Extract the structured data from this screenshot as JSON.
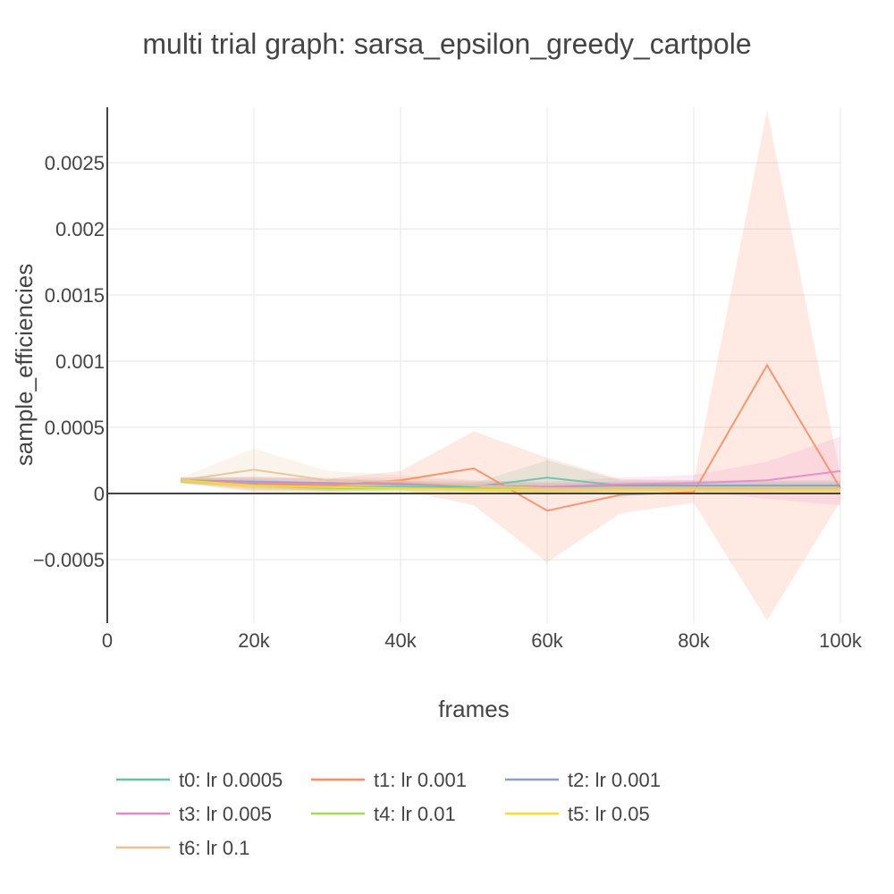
{
  "chart_data": {
    "type": "line",
    "title": "multi trial graph: sarsa_epsilon_greedy_cartpole",
    "xlabel": "frames",
    "ylabel": "sample_efficiencies",
    "xlim": [
      0,
      100000
    ],
    "ylim": [
      -0.00098,
      0.00292
    ],
    "x_ticks": [
      0,
      20000,
      40000,
      60000,
      80000,
      100000
    ],
    "x_tick_labels": [
      "0",
      "20k",
      "40k",
      "60k",
      "80k",
      "100k"
    ],
    "y_ticks": [
      -0.0005,
      0,
      0.0005,
      0.001,
      0.0015,
      0.002,
      0.0025
    ],
    "y_tick_labels": [
      "−0.0005",
      "0",
      "0.0005",
      "0.001",
      "0.0015",
      "0.002",
      "0.0025"
    ],
    "grid": true,
    "legend_position": "bottom",
    "x": [
      10000,
      20000,
      30000,
      40000,
      50000,
      60000,
      70000,
      80000,
      90000,
      100000
    ],
    "series": [
      {
        "name": "t0: lr 0.0005",
        "color": "#66c2a5",
        "values": [
          0.0001,
          8e-05,
          5e-05,
          5e-05,
          5e-05,
          0.00012,
          6e-05,
          6e-05,
          6e-05,
          6e-05
        ],
        "upper": [
          0.00012,
          0.00011,
          8e-05,
          8e-05,
          8e-05,
          0.00025,
          0.0001,
          0.0001,
          0.0001,
          0.0001
        ],
        "lower": [
          8e-05,
          5e-05,
          2e-05,
          2e-05,
          2e-05,
          -1e-05,
          2e-05,
          2e-05,
          2e-05,
          2e-05
        ]
      },
      {
        "name": "t1: lr 0.001",
        "color": "#fc8d62",
        "values": [
          0.0001,
          7e-05,
          6e-05,
          0.0001,
          0.00019,
          -0.00013,
          -1e-05,
          1e-05,
          0.00097,
          4e-05
        ],
        "upper": [
          0.00012,
          0.00013,
          0.00011,
          0.00017,
          0.00047,
          0.00027,
          0.00011,
          0.0001,
          0.0029,
          0.00014
        ],
        "lower": [
          8e-05,
          1e-05,
          1e-05,
          3e-05,
          -9e-05,
          -0.00052,
          -0.00015,
          -7e-05,
          -0.00096,
          -6e-05
        ]
      },
      {
        "name": "t2: lr 0.001",
        "color": "#8da0cb",
        "values": [
          0.0001,
          9e-05,
          8e-05,
          7e-05,
          6e-05,
          5e-05,
          6e-05,
          6e-05,
          6e-05,
          6e-05
        ],
        "upper": [
          0.00012,
          0.00012,
          0.00011,
          0.0001,
          9e-05,
          8e-05,
          9e-05,
          9e-05,
          9e-05,
          9e-05
        ],
        "lower": [
          8e-05,
          6e-05,
          5e-05,
          4e-05,
          3e-05,
          2e-05,
          3e-05,
          3e-05,
          3e-05,
          3e-05
        ]
      },
      {
        "name": "t3: lr 0.005",
        "color": "#e78ac3",
        "values": [
          0.0001,
          8e-05,
          7e-05,
          8e-05,
          6e-05,
          5e-05,
          7e-05,
          8e-05,
          0.0001,
          0.00017
        ],
        "upper": [
          0.00012,
          0.00012,
          0.00012,
          0.00012,
          0.0001,
          9e-05,
          0.00012,
          0.00014,
          0.00024,
          0.00043
        ],
        "lower": [
          8e-05,
          4e-05,
          2e-05,
          4e-05,
          2e-05,
          1e-05,
          2e-05,
          2e-05,
          -4e-05,
          -9e-05
        ]
      },
      {
        "name": "t4: lr 0.01",
        "color": "#a6d854",
        "values": [
          0.0001,
          6e-05,
          4e-05,
          4e-05,
          4e-05,
          4e-05,
          4e-05,
          4e-05,
          4e-05,
          4e-05
        ],
        "upper": [
          0.00012,
          9e-05,
          7e-05,
          7e-05,
          7e-05,
          7e-05,
          7e-05,
          7e-05,
          7e-05,
          7e-05
        ],
        "lower": [
          8e-05,
          3e-05,
          1e-05,
          1e-05,
          1e-05,
          1e-05,
          1e-05,
          1e-05,
          1e-05,
          1e-05
        ]
      },
      {
        "name": "t5: lr 0.05",
        "color": "#ffd92f",
        "values": [
          0.0001,
          6e-05,
          5e-05,
          4e-05,
          3e-05,
          3e-05,
          3e-05,
          3e-05,
          3e-05,
          3e-05
        ],
        "upper": [
          0.00012,
          9e-05,
          8e-05,
          7e-05,
          6e-05,
          6e-05,
          6e-05,
          6e-05,
          6e-05,
          6e-05
        ],
        "lower": [
          8e-05,
          3e-05,
          2e-05,
          1e-05,
          0.0,
          0.0,
          0.0,
          0.0,
          0.0,
          0.0
        ]
      },
      {
        "name": "t6: lr 0.1",
        "color": "#e5c494",
        "values": [
          0.0001,
          0.00018,
          0.0001,
          9e-05,
          6e-05,
          4e-05,
          4e-05,
          4e-05,
          4e-05,
          4e-05
        ],
        "upper": [
          0.00012,
          0.00034,
          0.00017,
          0.00014,
          0.0001,
          8e-05,
          8e-05,
          8e-05,
          8e-05,
          8e-05
        ],
        "lower": [
          8e-05,
          2e-05,
          3e-05,
          4e-05,
          2e-05,
          0.0,
          0.0,
          0.0,
          0.0,
          0.0
        ]
      }
    ]
  }
}
